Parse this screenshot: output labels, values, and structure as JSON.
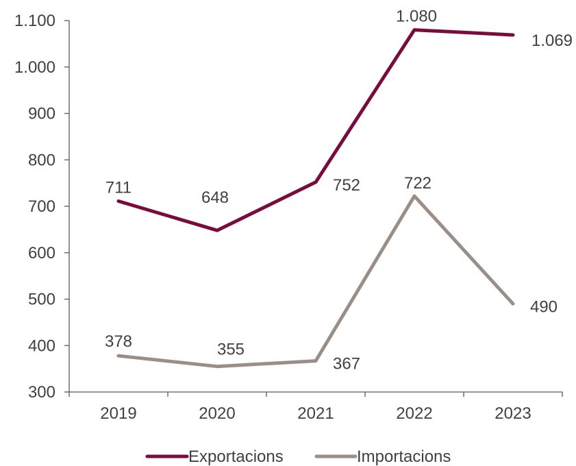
{
  "chart_data": {
    "type": "line",
    "categories": [
      "2019",
      "2020",
      "2021",
      "2022",
      "2023"
    ],
    "series": [
      {
        "name": "Exportacions",
        "values": [
          711,
          648,
          752,
          1080,
          1069
        ],
        "labels": [
          "711",
          "648",
          "752",
          "1.080",
          "1.069"
        ],
        "color": "#7a0b3d"
      },
      {
        "name": "Importacions",
        "values": [
          378,
          355,
          367,
          722,
          490
        ],
        "labels": [
          "378",
          "355",
          "367",
          "722",
          "490"
        ],
        "color": "#9a8e87"
      }
    ],
    "yticks": [
      300,
      400,
      500,
      600,
      700,
      800,
      900,
      1000,
      1100
    ],
    "ytick_labels": [
      "300",
      "400",
      "500",
      "600",
      "700",
      "800",
      "900",
      "1.000",
      "1.100"
    ],
    "ylim": [
      300,
      1100
    ],
    "axis_color": "#595959",
    "grid": false,
    "legend_position": "bottom"
  }
}
